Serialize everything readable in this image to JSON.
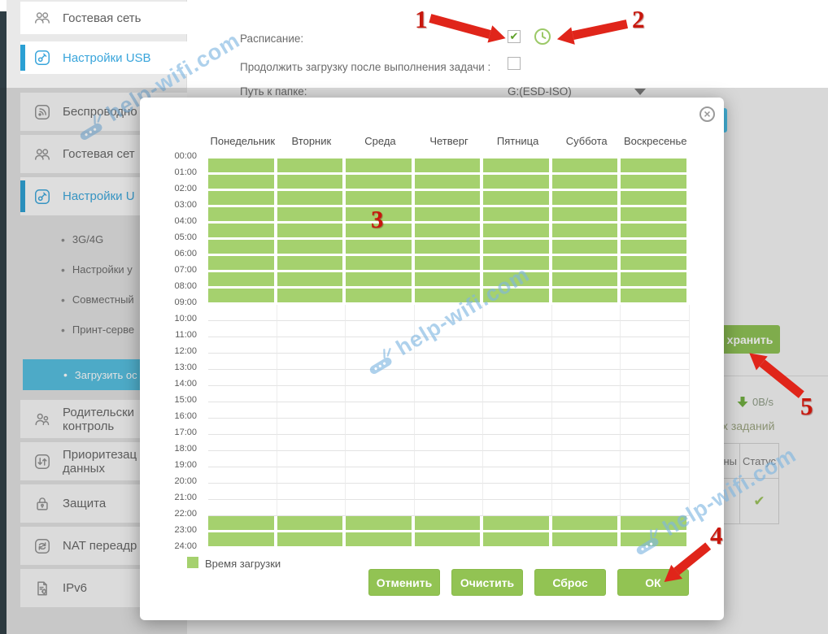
{
  "watermark": {
    "text": "help-wifi.com"
  },
  "annotations": {
    "n1": "1",
    "n2": "2",
    "n3": "3",
    "n4": "4",
    "n5": "5"
  },
  "top_form": {
    "schedule_label": "Расписание:",
    "schedule_check": "✔",
    "continue_label": "Продолжить загрузку после выполнения задачи :",
    "folder_label": "Путь к папке:",
    "folder_value": "G:(ESD-ISO)"
  },
  "sidebar_top": {
    "items": [
      {
        "label": "Гостевая сеть",
        "icon": "guest-network-icon",
        "active": false
      },
      {
        "label": "Настройки USB",
        "icon": "usb-settings-icon",
        "active": true
      }
    ]
  },
  "sidebar": {
    "items": [
      {
        "type": "main",
        "label": "Беспроводно",
        "icon": "wireless-icon"
      },
      {
        "type": "main",
        "label": "Гостевая сет",
        "icon": "guest-network-icon"
      },
      {
        "type": "main",
        "label": "Настройки U",
        "icon": "usb-settings-icon",
        "active": true
      },
      {
        "type": "sub",
        "label": "3G/4G"
      },
      {
        "type": "sub",
        "label": "Настройки у"
      },
      {
        "type": "sub",
        "label": "Совместный"
      },
      {
        "type": "sub",
        "label": "Принт-серве"
      },
      {
        "type": "sub",
        "label": "Загрузить ос",
        "active": true
      },
      {
        "type": "main",
        "label": "Родительски",
        "label2": "контроль",
        "icon": "parental-control-icon"
      },
      {
        "type": "main",
        "label": "Приоритезац",
        "label2": "данных",
        "icon": "qos-icon"
      },
      {
        "type": "main",
        "label": "Защита",
        "icon": "security-icon"
      },
      {
        "type": "main",
        "label": "NAT переадр",
        "icon": "nat-icon"
      },
      {
        "type": "main",
        "label": "IPv6",
        "icon": "ipv6-icon"
      }
    ]
  },
  "modal": {
    "days": [
      "Понедельник",
      "Вторник",
      "Среда",
      "Четверг",
      "Пятница",
      "Суббота",
      "Воскресенье"
    ],
    "times": [
      "00:00",
      "01:00",
      "02:00",
      "03:00",
      "04:00",
      "05:00",
      "06:00",
      "07:00",
      "08:00",
      "09:00",
      "10:00",
      "11:00",
      "12:00",
      "13:00",
      "14:00",
      "15:00",
      "16:00",
      "17:00",
      "18:00",
      "19:00",
      "20:00",
      "21:00",
      "22:00",
      "23:00",
      "24:00"
    ],
    "legend_label": "Время загрузки",
    "buttons": [
      {
        "label": "Отменить"
      },
      {
        "label": "Очистить"
      },
      {
        "label": "Сброс"
      },
      {
        "label": "ОК"
      }
    ]
  },
  "right_panel": {
    "save_button_label": "хранить",
    "download_speed": "0B/s",
    "tasks_text": "х заданий",
    "table_header_partial": "ны",
    "table_header_status": "Статус",
    "status_check": "✔"
  },
  "colors": {
    "accent_blue": "#39a5db",
    "selected_subitem_bg": "#54bfe0",
    "grid_green": "#a5d16e",
    "button_green": "#92c353",
    "arrow_red": "#e0251a"
  },
  "chart_data": {
    "type": "heatmap",
    "title": "Расписание загрузки (weekly download schedule grid)",
    "columns": [
      "Понедельник",
      "Вторник",
      "Среда",
      "Четверг",
      "Пятница",
      "Суббота",
      "Воскресенье"
    ],
    "row_labels": [
      "00:00",
      "01:00",
      "02:00",
      "03:00",
      "04:00",
      "05:00",
      "06:00",
      "07:00",
      "08:00",
      "09:00",
      "10:00",
      "11:00",
      "12:00",
      "13:00",
      "14:00",
      "15:00",
      "16:00",
      "17:00",
      "18:00",
      "19:00",
      "20:00",
      "21:00",
      "22:00",
      "23:00",
      "24:00"
    ],
    "selected_hours": [
      0,
      1,
      2,
      3,
      4,
      5,
      6,
      7,
      8,
      22,
      23
    ],
    "selected_ranges": [
      [
        "00:00",
        "09:00"
      ],
      [
        "22:00",
        "24:00"
      ]
    ],
    "applies_to": "all 7 days",
    "legend": "Время загрузки",
    "cell_on_color": "#a5d16e",
    "cell_off_color": "#ffffff"
  }
}
